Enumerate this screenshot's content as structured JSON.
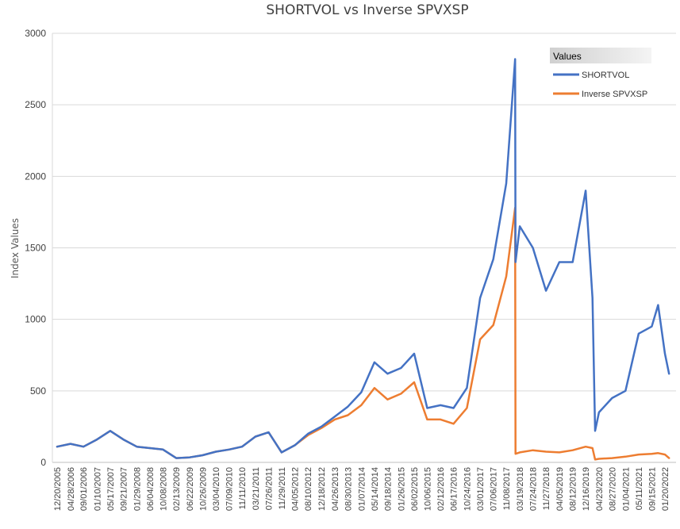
{
  "chart_data": {
    "type": "line",
    "title": "SHORTVOL vs Inverse SPVXSP",
    "xlabel": "",
    "ylabel": "Index Values",
    "ylim": [
      0,
      3000
    ],
    "yticks": [
      0,
      500,
      1000,
      1500,
      2000,
      2500,
      3000
    ],
    "grid": "horizontal",
    "legend": {
      "title": "Values",
      "position": "top-right"
    },
    "x_tick_labels": [
      "12/20/2005",
      "04/28/2006",
      "09/01/2006",
      "01/10/2007",
      "05/17/2007",
      "09/21/2007",
      "01/29/2008",
      "06/04/2008",
      "10/08/2008",
      "02/13/2009",
      "06/22/2009",
      "10/26/2009",
      "03/04/2010",
      "07/09/2010",
      "11/11/2010",
      "03/21/2011",
      "07/26/2011",
      "11/29/2011",
      "04/05/2012",
      "08/10/2012",
      "12/18/2012",
      "04/26/2013",
      "08/30/2013",
      "01/07/2014",
      "05/14/2014",
      "09/18/2014",
      "01/26/2015",
      "06/02/2015",
      "10/06/2015",
      "02/12/2016",
      "06/17/2016",
      "10/24/2016",
      "03/01/2017",
      "07/06/2017",
      "11/08/2017",
      "03/19/2018",
      "07/24/2018",
      "11/27/2018",
      "04/05/2019",
      "08/12/2019",
      "12/16/2019",
      "04/23/2020",
      "08/27/2020",
      "01/04/2021",
      "05/11/2021",
      "09/15/2021",
      "01/20/2022"
    ],
    "x": [
      "12/20/2005",
      "04/28/2006",
      "09/01/2006",
      "01/10/2007",
      "05/17/2007",
      "09/21/2007",
      "01/29/2008",
      "06/04/2008",
      "10/08/2008",
      "02/13/2009",
      "06/22/2009",
      "10/26/2009",
      "03/04/2010",
      "07/09/2010",
      "11/11/2010",
      "03/21/2011",
      "07/26/2011",
      "11/29/2011",
      "04/05/2012",
      "08/10/2012",
      "12/18/2012",
      "04/26/2013",
      "08/30/2013",
      "01/07/2014",
      "05/14/2014",
      "09/18/2014",
      "01/26/2015",
      "06/02/2015",
      "10/06/2015",
      "02/12/2016",
      "06/17/2016",
      "10/24/2016",
      "03/01/2017",
      "07/06/2017",
      "11/08/2017",
      "02/02/2018",
      "02/06/2018",
      "03/19/2018",
      "07/24/2018",
      "11/27/2018",
      "04/05/2019",
      "08/12/2019",
      "12/16/2019",
      "02/20/2020",
      "03/16/2020",
      "04/23/2020",
      "08/27/2020",
      "01/04/2021",
      "05/11/2021",
      "09/15/2021",
      "11/15/2021",
      "01/20/2022",
      "03/01/2022"
    ],
    "series": [
      {
        "name": "SHORTVOL",
        "color": "#4472C4",
        "values": [
          110,
          130,
          110,
          160,
          220,
          160,
          110,
          100,
          90,
          30,
          35,
          50,
          75,
          90,
          110,
          180,
          210,
          70,
          120,
          200,
          250,
          320,
          390,
          490,
          700,
          620,
          660,
          760,
          380,
          400,
          380,
          520,
          1150,
          1420,
          1950,
          2820,
          1400,
          1650,
          1500,
          1200,
          1400,
          1400,
          1900,
          1150,
          220,
          350,
          450,
          500,
          900,
          950,
          1100,
          760,
          620
        ]
      },
      {
        "name": "Inverse SPVXSP",
        "color": "#ED7D31",
        "values": [
          110,
          130,
          110,
          160,
          220,
          160,
          110,
          100,
          90,
          30,
          35,
          50,
          75,
          90,
          110,
          180,
          210,
          70,
          120,
          190,
          240,
          300,
          330,
          400,
          520,
          440,
          480,
          560,
          300,
          300,
          270,
          380,
          860,
          960,
          1300,
          1780,
          60,
          70,
          85,
          75,
          70,
          85,
          110,
          100,
          20,
          25,
          30,
          40,
          55,
          60,
          65,
          55,
          30
        ]
      }
    ]
  }
}
